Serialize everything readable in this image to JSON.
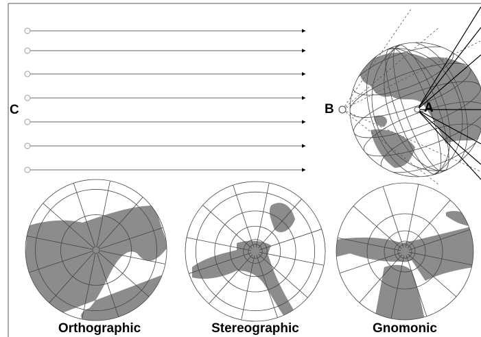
{
  "labels": {
    "c": "C",
    "b": "B",
    "a": "A"
  },
  "projections": [
    {
      "label": "Orthographic"
    },
    {
      "label": "Stereographic"
    },
    {
      "label": "Gnomonic"
    }
  ]
}
